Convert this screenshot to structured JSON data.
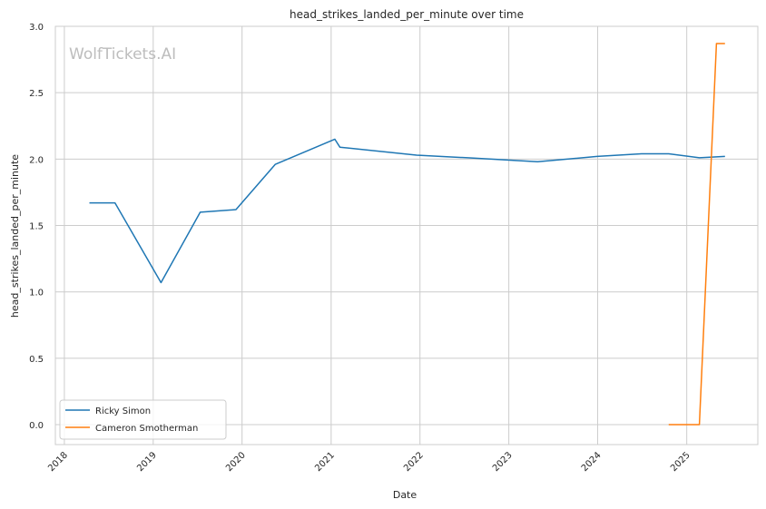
{
  "chart_data": {
    "type": "line",
    "title": "head_strikes_landed_per_minute over time",
    "xlabel": "Date",
    "ylabel": "head_strikes_landed_per_minute",
    "watermark": "WolfTickets.AI",
    "xlim": [
      "2017-11-25",
      "2025-10-20"
    ],
    "ylim": [
      -0.15,
      3.0
    ],
    "x_ticks": [
      "2018",
      "2019",
      "2020",
      "2021",
      "2022",
      "2023",
      "2024",
      "2025"
    ],
    "y_ticks": [
      "0.0",
      "0.5",
      "1.0",
      "1.5",
      "2.0",
      "2.5",
      "3.0"
    ],
    "grid": true,
    "legend_position": "lower-left",
    "series": [
      {
        "name": "Ricky Simon",
        "color": "#1f77b4",
        "x": [
          "2018-04-14",
          "2018-07-28",
          "2019-02-02",
          "2019-07-13",
          "2019-12-07",
          "2020-05-16",
          "2021-01-16",
          "2021-02-06",
          "2021-12-18",
          "2022-07-16",
          "2023-04-29",
          "2023-12-30",
          "2024-06-29",
          "2024-10-19",
          "2025-02-22",
          "2025-06-07"
        ],
        "y": [
          1.67,
          1.67,
          1.07,
          1.6,
          1.62,
          1.96,
          2.15,
          2.09,
          2.03,
          2.01,
          1.98,
          2.02,
          2.04,
          2.04,
          2.01,
          2.02
        ]
      },
      {
        "name": "Cameron Smotherman",
        "color": "#ff7f0e",
        "x": [
          "2024-10-19",
          "2025-02-22",
          "2025-05-03",
          "2025-06-07"
        ],
        "y": [
          0.0,
          0.0,
          2.87,
          2.87
        ]
      }
    ]
  }
}
